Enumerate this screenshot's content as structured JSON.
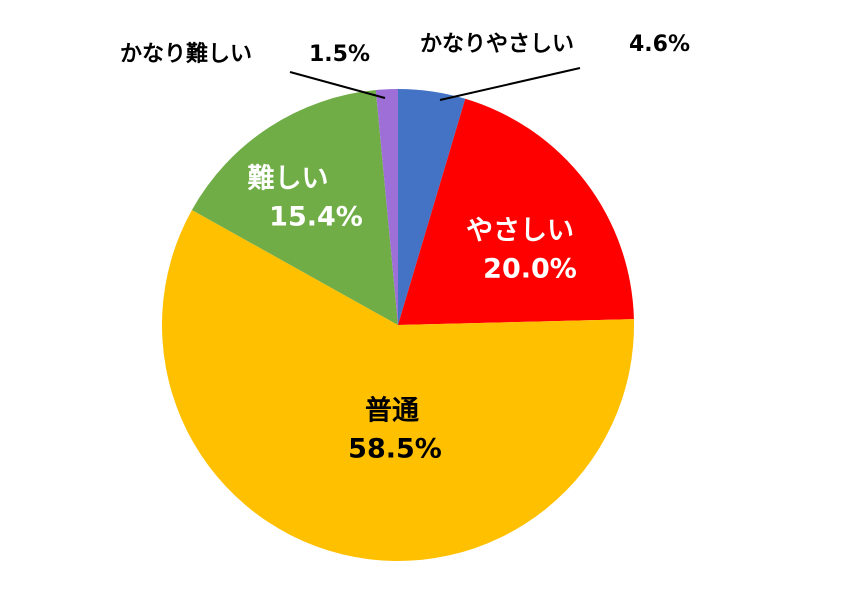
{
  "chart_data": {
    "type": "pie",
    "categories": [
      "かなりやさしい",
      "やさしい",
      "普通",
      "難しい",
      "かなり難しい"
    ],
    "values": [
      4.6,
      20.0,
      58.5,
      15.4,
      1.5
    ],
    "value_labels": [
      "4.6%",
      "20.0%",
      "58.5%",
      "15.4%",
      "1.5%"
    ],
    "colors": [
      "#4472c4",
      "#ff0000",
      "#ffc000",
      "#70ad47",
      "#9e6fd6"
    ]
  }
}
